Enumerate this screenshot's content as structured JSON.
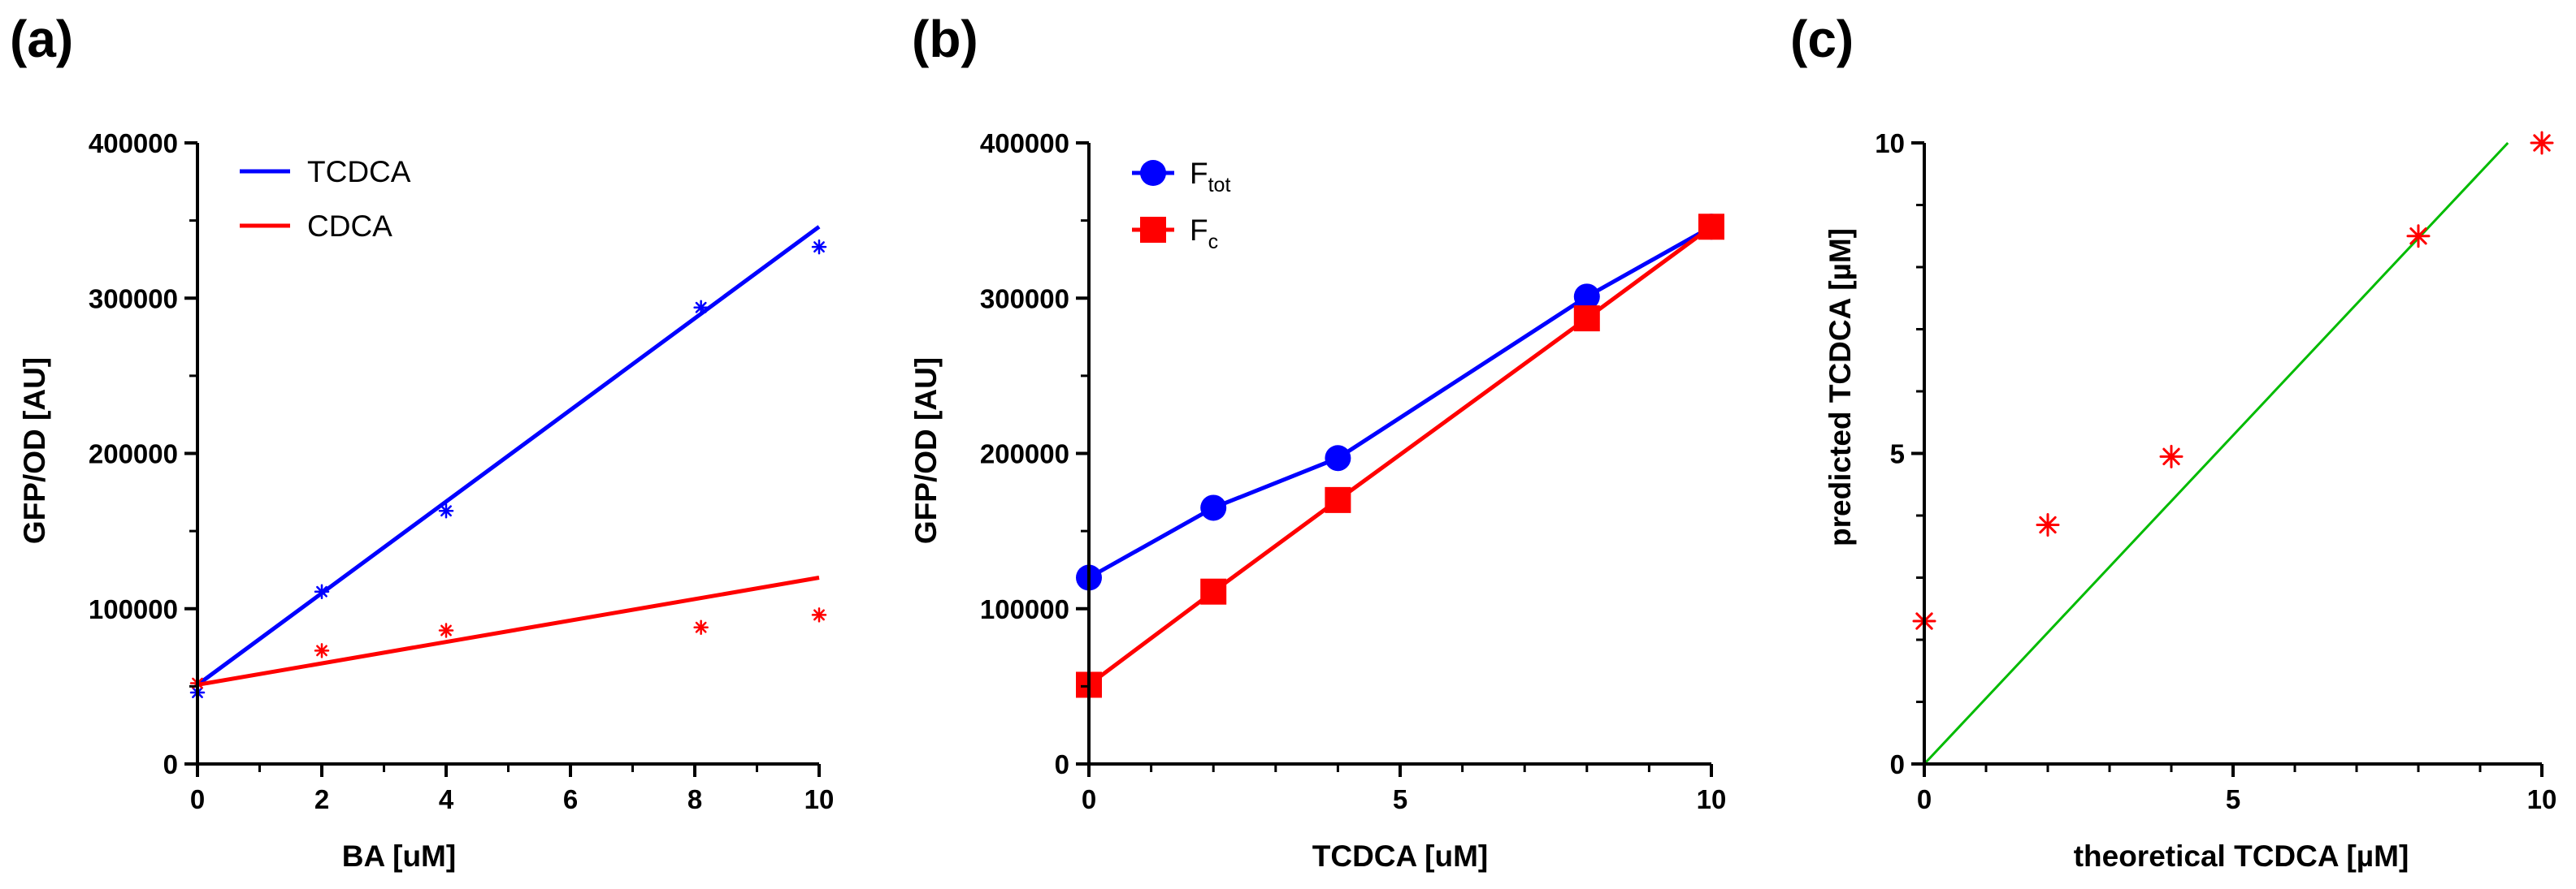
{
  "figure": {
    "panels": [
      "(a)",
      "(b)",
      "(c)"
    ]
  },
  "chart_data": [
    {
      "panel": "(a)",
      "type": "scatter",
      "title": "",
      "xlabel": "BA [uM]",
      "ylabel": "GFP/OD [AU]",
      "xlim": [
        0,
        10
      ],
      "ylim": [
        0,
        400000
      ],
      "xticks": [
        0,
        2,
        4,
        6,
        8,
        10
      ],
      "yticks": [
        0,
        100000,
        200000,
        300000,
        400000
      ],
      "xtick_labels": [
        "0",
        "2",
        "4",
        "6",
        "8",
        "10"
      ],
      "ytick_labels": [
        "0",
        "100000",
        "200000",
        "300000",
        "400000"
      ],
      "legend_position": "top-left",
      "series": [
        {
          "name": "TCDCA",
          "color": "#0000ff",
          "marker": "asterisk",
          "x": [
            0,
            2,
            4,
            8.1,
            10
          ],
          "y": [
            46000,
            111000,
            163000,
            294000,
            333000
          ],
          "fit": {
            "x": [
              0,
              10
            ],
            "y": [
              51000,
              346000
            ]
          }
        },
        {
          "name": "CDCA",
          "color": "#ff0000",
          "marker": "asterisk",
          "x": [
            0,
            2,
            4,
            8.1,
            10
          ],
          "y": [
            52000,
            73000,
            86000,
            88000,
            96000
          ],
          "fit": {
            "x": [
              0,
              10
            ],
            "y": [
              51000,
              120000
            ]
          }
        }
      ]
    },
    {
      "panel": "(b)",
      "type": "line",
      "title": "",
      "xlabel": "TCDCA [uM]",
      "ylabel": "GFP/OD [AU]",
      "xlim": [
        0,
        10
      ],
      "ylim": [
        0,
        400000
      ],
      "xticks": [
        0,
        5,
        10
      ],
      "yticks": [
        0,
        100000,
        200000,
        300000,
        400000
      ],
      "xtick_labels": [
        "0",
        "5",
        "10"
      ],
      "ytick_labels": [
        "0",
        "100000",
        "200000",
        "300000",
        "400000"
      ],
      "legend_position": "top-left",
      "series": [
        {
          "name": "F",
          "subscript": "tot",
          "color": "#0000ff",
          "marker": "circle",
          "x": [
            0,
            2,
            4,
            8,
            10
          ],
          "y": [
            120000,
            165000,
            197000,
            301000,
            346000
          ]
        },
        {
          "name": "F",
          "subscript": "c",
          "color": "#ff0000",
          "marker": "square",
          "x": [
            0,
            2,
            4,
            8,
            10
          ],
          "y": [
            51000,
            111000,
            170000,
            287000,
            346000
          ]
        }
      ]
    },
    {
      "panel": "(c)",
      "type": "scatter",
      "title": "",
      "xlabel": "theoretical TCDCA [µM]",
      "ylabel": "predicted TCDCA [µM]",
      "xlim": [
        0,
        10
      ],
      "ylim": [
        0,
        10
      ],
      "xticks": [
        0,
        5,
        10
      ],
      "yticks": [
        0,
        5,
        10
      ],
      "xtick_labels": [
        "0",
        "5",
        "10"
      ],
      "ytick_labels": [
        "0",
        "5",
        "10"
      ],
      "series": [
        {
          "name": "predicted",
          "color": "#ff0000",
          "marker": "asterisk",
          "x": [
            0,
            2,
            4,
            8,
            10
          ],
          "y": [
            2.3,
            3.85,
            4.95,
            8.5,
            10.0
          ]
        }
      ],
      "reference_line": {
        "color": "#00bb00",
        "x": [
          0,
          9.45
        ],
        "y": [
          0,
          10
        ]
      }
    }
  ]
}
